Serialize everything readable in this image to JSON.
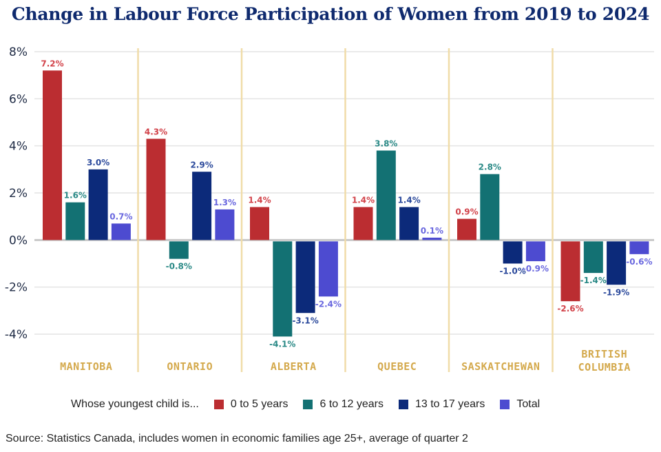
{
  "chart_data": {
    "type": "bar",
    "title": "Change in Labour Force Participation of Women from 2019 to 2024",
    "categories": [
      "MANITOBA",
      "ONTARIO",
      "ALBERTA",
      "QUEBEC",
      "SASKATCHEWAN",
      "BRITISH COLUMBIA"
    ],
    "legend_title": "Whose youngest child is...",
    "series": [
      {
        "name": "0 to 5 years",
        "color": "#bb2d31",
        "label_color": "#d2434a",
        "values": [
          7.2,
          4.3,
          1.4,
          1.4,
          0.9,
          -2.6
        ]
      },
      {
        "name": "6 to 12 years",
        "color": "#137173",
        "label_color": "#2a8986",
        "values": [
          1.6,
          -0.8,
          -4.1,
          3.8,
          2.8,
          -1.4
        ]
      },
      {
        "name": "13 to 17 years",
        "color": "#0c2a7a",
        "label_color": "#2c4a9c",
        "values": [
          3.0,
          2.9,
          -3.1,
          1.4,
          -1.0,
          -1.9
        ]
      },
      {
        "name": "Total",
        "color": "#4d4bd0",
        "label_color": "#6a68df",
        "values": [
          0.7,
          1.3,
          -2.4,
          0.1,
          -0.9,
          -0.6
        ]
      }
    ],
    "y_ticks": [
      "8%",
      "6%",
      "4%",
      "2%",
      "0%",
      "-2%",
      "-4%"
    ],
    "ylim": [
      -4,
      8
    ],
    "grid": true,
    "legend_position": "bottom",
    "category_label_color": "#d4a94c",
    "separator_color": "#f0dca8"
  },
  "source": "Source: Statistics Canada, includes women in economic families age 25+, average of quarter 2"
}
